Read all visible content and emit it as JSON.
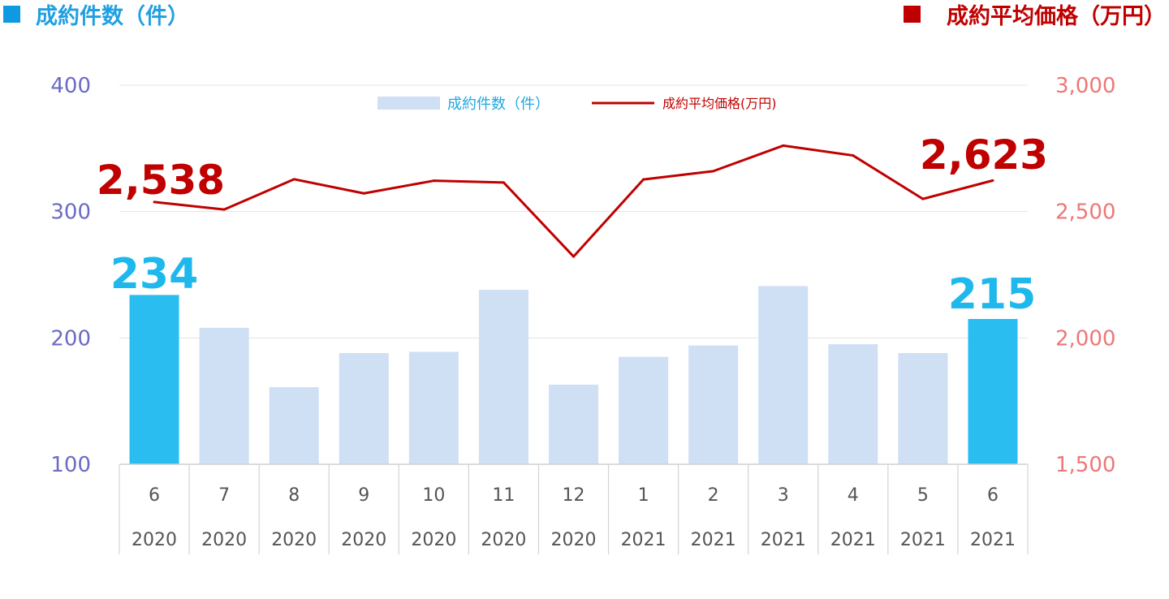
{
  "header": {
    "left_title": "成約件数（件）",
    "right_title": "成約平均価格（万円）",
    "left_color": "#0d9ae0",
    "right_color": "#c00000"
  },
  "chart_data": {
    "type": "bar",
    "categories": [
      [
        "6",
        "2020"
      ],
      [
        "7",
        "2020"
      ],
      [
        "8",
        "2020"
      ],
      [
        "9",
        "2020"
      ],
      [
        "10",
        "2020"
      ],
      [
        "11",
        "2020"
      ],
      [
        "12",
        "2020"
      ],
      [
        "1",
        "2021"
      ],
      [
        "2",
        "2021"
      ],
      [
        "3",
        "2021"
      ],
      [
        "4",
        "2021"
      ],
      [
        "5",
        "2021"
      ],
      [
        "6",
        "2021"
      ]
    ],
    "series": [
      {
        "name": "成約件数（件）",
        "type": "bar",
        "axis": "left",
        "values": [
          234,
          208,
          161,
          188,
          189,
          238,
          163,
          185,
          194,
          241,
          195,
          188,
          215
        ],
        "highlight_indices": [
          0,
          12
        ],
        "color": "#cfdff4",
        "highlight_color": "#29bdf0"
      },
      {
        "name": "成約平均価格(万円)",
        "type": "line",
        "axis": "right",
        "values": [
          2538,
          2508,
          2628,
          2572,
          2622,
          2615,
          2322,
          2627,
          2660,
          2761,
          2722,
          2550,
          2623
        ],
        "color": "#c00000"
      }
    ],
    "y_left": {
      "range": [
        100,
        400
      ],
      "ticks": [
        "100",
        "200",
        "300",
        "400"
      ]
    },
    "y_right": {
      "range": [
        1500,
        3000
      ],
      "ticks": [
        "1,500",
        "2,000",
        "2,500",
        "3,000"
      ]
    },
    "gridlines": "horizontal",
    "legend": "top-center",
    "callouts": {
      "bar_first": "234",
      "bar_last": "215",
      "line_first": "2,538",
      "line_last": "2,623"
    }
  }
}
